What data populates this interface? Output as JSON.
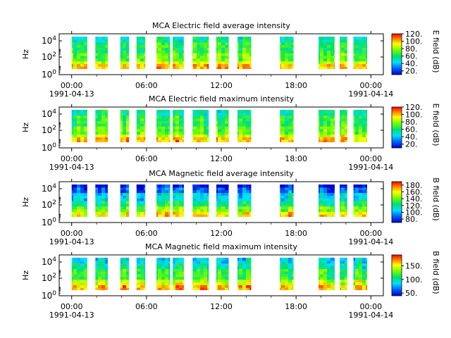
{
  "chart_data": [
    {
      "type": "heatmap",
      "title": "MCA  Electric field average intensity",
      "ylabel": "Hz",
      "colorbar_label": "E field (dB)",
      "colorbar_ticks": [
        "20.",
        "40.",
        "60.",
        "80.",
        "100.",
        "120."
      ],
      "cmin": 10,
      "cmax": 120
    },
    {
      "type": "heatmap",
      "title": "MCA  Electric field maximum intensity",
      "ylabel": "Hz",
      "colorbar_label": "E field (dB)",
      "colorbar_ticks": [
        "20.",
        "40.",
        "60.",
        "80.",
        "100.",
        "120."
      ],
      "cmin": 10,
      "cmax": 120
    },
    {
      "type": "heatmap",
      "title": "MCA  Magnetic field average intensity",
      "ylabel": "Hz",
      "colorbar_label": "B field (dB)",
      "colorbar_ticks": [
        "80.",
        "100.",
        "120.",
        "140.",
        "160.",
        "180."
      ],
      "cmin": 70,
      "cmax": 190
    },
    {
      "type": "heatmap",
      "title": "MCA  Magnetic field maximum intensity",
      "ylabel": "Hz",
      "colorbar_label": "B field (dB)",
      "colorbar_ticks": [
        "50.",
        "100.",
        "150."
      ],
      "cmin": 40,
      "cmax": 190
    }
  ],
  "x_axis": {
    "ticks": [
      "00:00",
      "06:00",
      "12:00",
      "18:00",
      "00:00"
    ],
    "tick_hours": [
      0,
      6,
      12,
      18,
      24
    ],
    "start_date": "1991-04-13",
    "end_date": "1991-04-14",
    "xlim_hours": [
      -1,
      25
    ]
  },
  "y_axis": {
    "ticks": [
      "10",
      "10",
      "10"
    ],
    "exponents": [
      "0",
      "2",
      "4"
    ],
    "scale": "log"
  },
  "data_gaps_hours": [
    [
      -1,
      0
    ],
    [
      1.25,
      1.9
    ],
    [
      2.9,
      3.9
    ],
    [
      4.6,
      5.2
    ],
    [
      5.9,
      6.8
    ],
    [
      7.9,
      8.1
    ],
    [
      9.0,
      9.7
    ],
    [
      11.0,
      11.6
    ],
    [
      12.6,
      13.3
    ],
    [
      14.4,
      16.7
    ],
    [
      17.8,
      19.8
    ],
    [
      21.1,
      21.5
    ],
    [
      22.1,
      22.6
    ],
    [
      23.7,
      25
    ]
  ]
}
